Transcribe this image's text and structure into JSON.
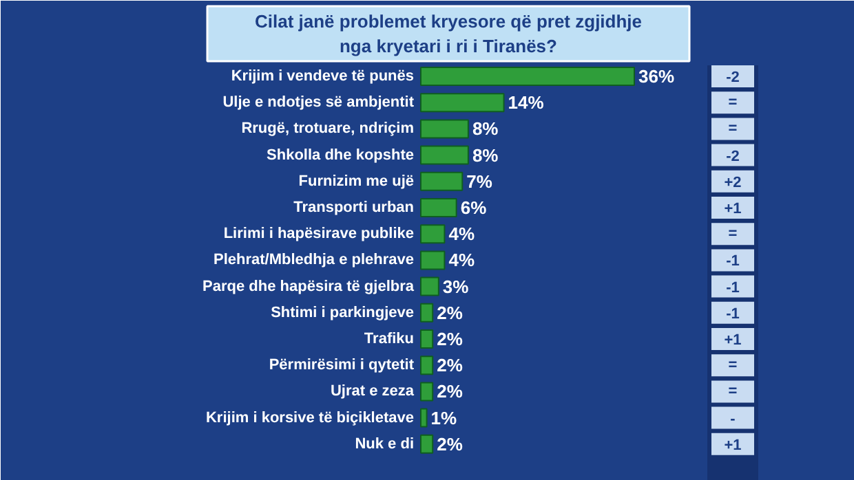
{
  "chart_data": {
    "type": "bar",
    "orientation": "horizontal",
    "title": "Cilat janë problemet kryesore që pret zgjidhje nga kryetari i ri i Tiranës?",
    "categories": [
      "Krijim i vendeve të punës",
      "Ulje e ndotjes së ambjentit",
      "Rrugë, trotuare, ndriçim",
      "Shkolla dhe kopshte",
      "Furnizim me ujë",
      "Transporti urban",
      "Lirimi i hapësirave publike",
      "Plehrat/Mbledhja e plehrave",
      "Parqe dhe hapësira të gjelbra",
      "Shtimi i parkingjeve",
      "Trafiku",
      "Përmirësimi i qytetit",
      "Ujrat e zeza",
      "Krijim i korsive të biçikletave",
      "Nuk e di"
    ],
    "values": [
      36,
      14,
      8,
      8,
      7,
      6,
      4,
      4,
      3,
      2,
      2,
      2,
      2,
      1,
      2
    ],
    "value_labels": [
      "36%",
      "14%",
      "8%",
      "8%",
      "7%",
      "6%",
      "4%",
      "4%",
      "3%",
      "2%",
      "2%",
      "2%",
      "2%",
      "1%",
      "2%"
    ],
    "color": "#2f9e3a",
    "annotations": [
      "-2",
      "=",
      "=",
      "-2",
      "+2",
      "+1",
      "=",
      "-1",
      "-1",
      "-1",
      "+1",
      "=",
      "=",
      "-",
      "+1"
    ],
    "grid": false
  }
}
